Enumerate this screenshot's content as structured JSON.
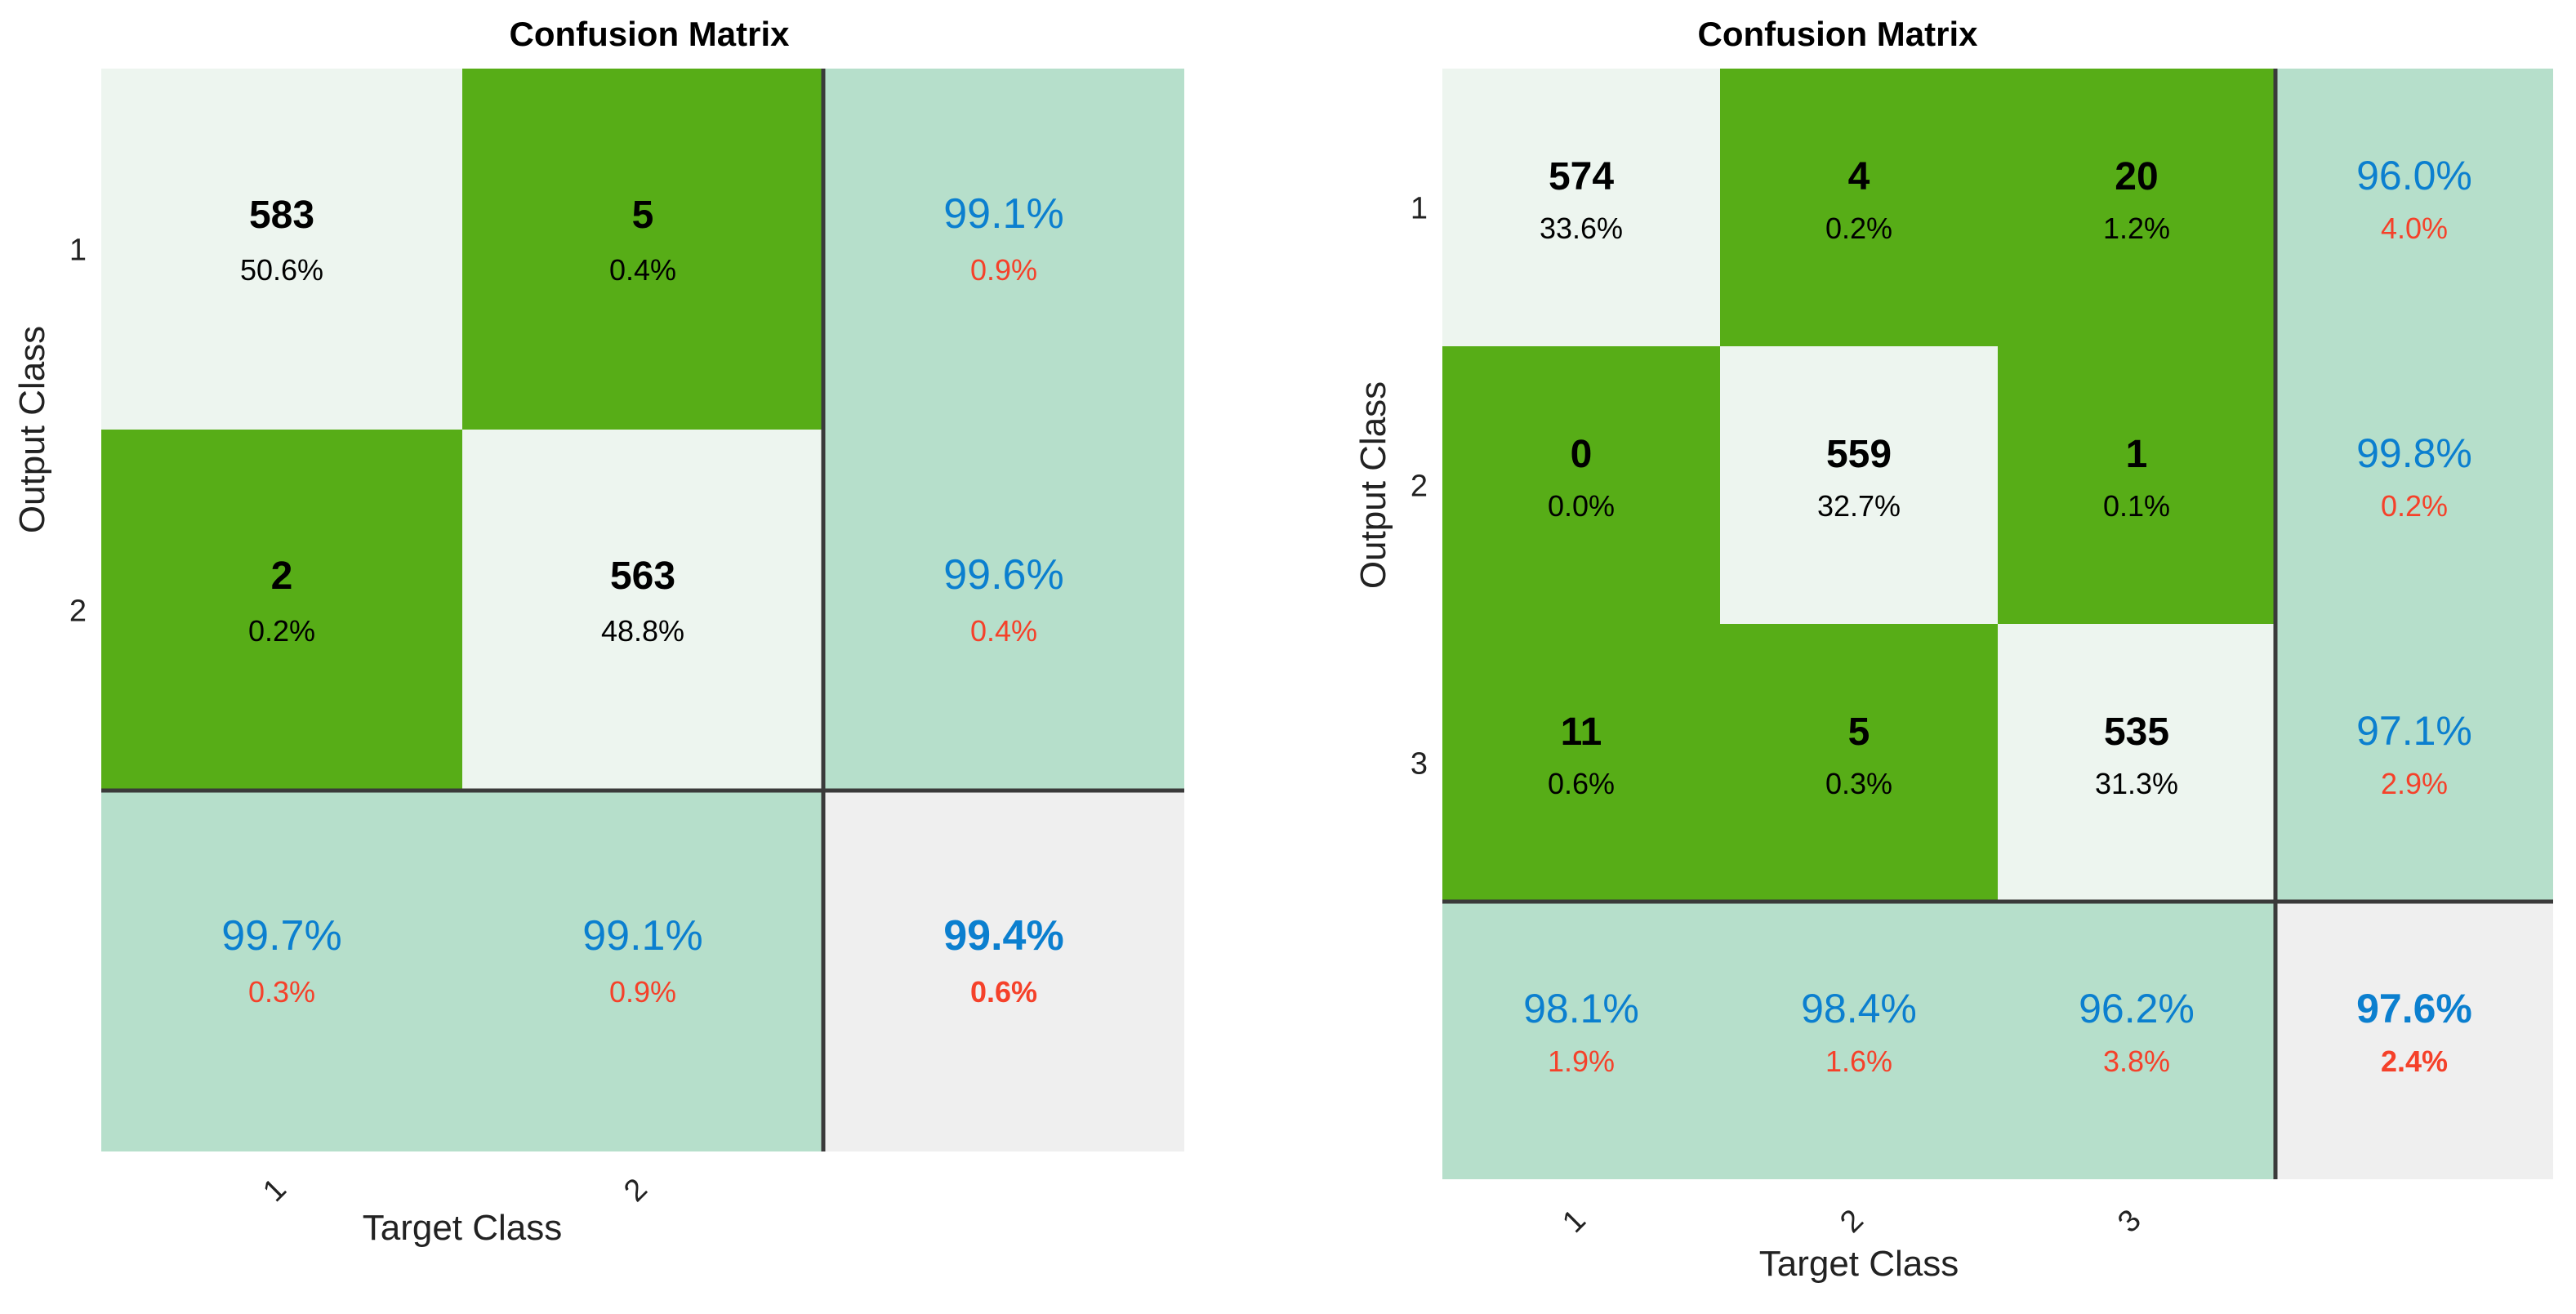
{
  "colors": {
    "correct_cell": "#edf5ef",
    "error_cell": "#57ad17",
    "summary_cell": "#b6dfcb",
    "total_cell": "#efefef",
    "good_text": "#0b7fcf",
    "bad_text": "#f5412a",
    "grid_line": "#3a3a3a"
  },
  "chart_data": [
    {
      "type": "heatmap",
      "title": "Confusion Matrix",
      "xlabel": "Target Class",
      "ylabel": "Output Class",
      "x_tick_labels": [
        "1",
        "2"
      ],
      "y_tick_labels": [
        "1",
        "2"
      ],
      "counts": [
        [
          583,
          5
        ],
        [
          2,
          563
        ]
      ],
      "cell_percent": [
        [
          "50.6%",
          "0.4%"
        ],
        [
          "0.2%",
          "48.8%"
        ]
      ],
      "row_summary": [
        {
          "correct": "99.1%",
          "error": "0.9%"
        },
        {
          "correct": "99.6%",
          "error": "0.4%"
        }
      ],
      "col_summary": [
        {
          "correct": "99.7%",
          "error": "0.3%"
        },
        {
          "correct": "99.1%",
          "error": "0.9%"
        }
      ],
      "overall": {
        "correct": "99.4%",
        "error": "0.6%"
      }
    },
    {
      "type": "heatmap",
      "title": "Confusion Matrix",
      "xlabel": "Target Class",
      "ylabel": "Output Class",
      "x_tick_labels": [
        "1",
        "2",
        "3"
      ],
      "y_tick_labels": [
        "1",
        "2",
        "3"
      ],
      "counts": [
        [
          574,
          4,
          20
        ],
        [
          0,
          559,
          1
        ],
        [
          11,
          5,
          535
        ]
      ],
      "cell_percent": [
        [
          "33.6%",
          "0.2%",
          "1.2%"
        ],
        [
          "0.0%",
          "32.7%",
          "0.1%"
        ],
        [
          "0.6%",
          "0.3%",
          "31.3%"
        ]
      ],
      "row_summary": [
        {
          "correct": "96.0%",
          "error": "4.0%"
        },
        {
          "correct": "99.8%",
          "error": "0.2%"
        },
        {
          "correct": "97.1%",
          "error": "2.9%"
        }
      ],
      "col_summary": [
        {
          "correct": "98.1%",
          "error": "1.9%"
        },
        {
          "correct": "98.4%",
          "error": "1.6%"
        },
        {
          "correct": "96.2%",
          "error": "3.8%"
        }
      ],
      "overall": {
        "correct": "97.6%",
        "error": "2.4%"
      }
    }
  ]
}
